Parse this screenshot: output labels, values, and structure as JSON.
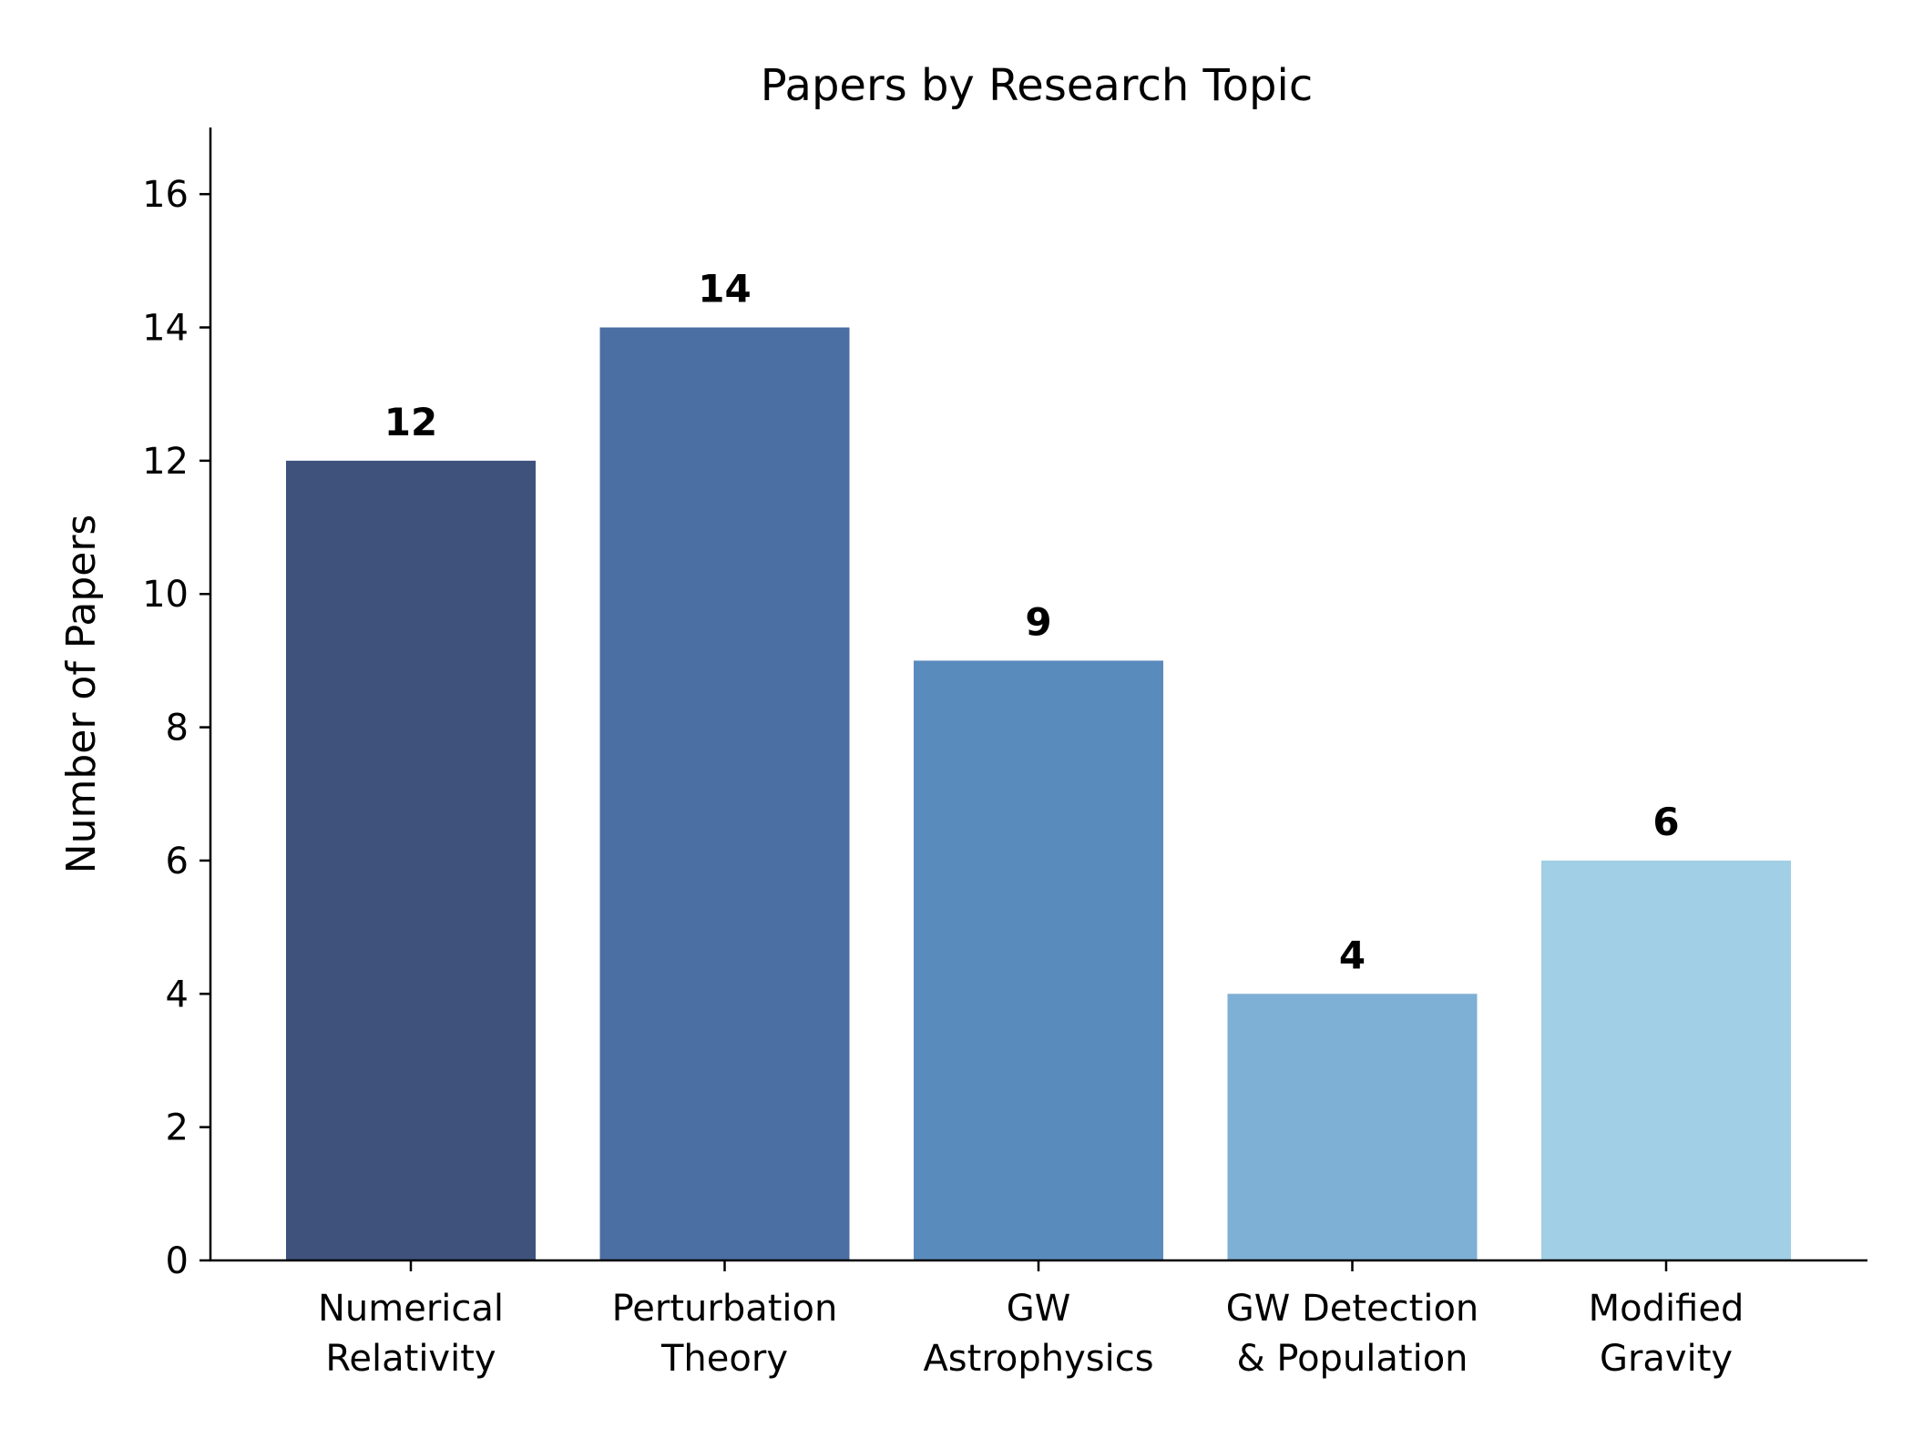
{
  "chart_data": {
    "type": "bar",
    "title": "Papers by Research Topic",
    "xlabel": "",
    "ylabel": "Number of Papers",
    "ylim": [
      0,
      17
    ],
    "yticks": [
      0,
      2,
      4,
      6,
      8,
      10,
      12,
      14,
      16
    ],
    "categories": [
      [
        "Numerical",
        "Relativity"
      ],
      [
        "Perturbation",
        "Theory"
      ],
      [
        "GW",
        "Astrophysics"
      ],
      [
        "GW Detection",
        "& Population"
      ],
      [
        "Modified",
        "Gravity"
      ]
    ],
    "values": [
      12,
      14,
      9,
      4,
      6
    ],
    "colors": [
      "#3e527c",
      "#4b6fa3",
      "#5a8bbd",
      "#7eafd4",
      "#a1cfe6"
    ],
    "grid": false,
    "legend": "none"
  }
}
